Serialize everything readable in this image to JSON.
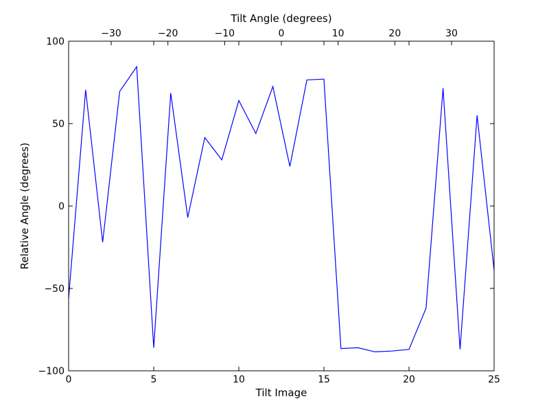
{
  "chart_data": {
    "type": "line",
    "xlabel": "Tilt Image",
    "ylabel": "Relative Angle (degrees)",
    "top_xlabel": "Tilt Angle (degrees)",
    "xlim": [
      0,
      25
    ],
    "ylim": [
      -100,
      100
    ],
    "top_xlim": [
      -37.5,
      37.5
    ],
    "x_ticks": [
      0,
      5,
      10,
      15,
      20,
      25
    ],
    "x_tick_labels": [
      "0",
      "5",
      "10",
      "15",
      "20",
      "25"
    ],
    "y_ticks": [
      -100,
      -50,
      0,
      50,
      100
    ],
    "y_tick_labels": [
      "−100",
      "−50",
      "0",
      "50",
      "100"
    ],
    "top_x_ticks": [
      -30,
      -20,
      -10,
      0,
      10,
      20,
      30
    ],
    "top_x_tick_labels": [
      "−30",
      "−20",
      "−10",
      "0",
      "10",
      "20",
      "30"
    ],
    "grid": false,
    "series": [
      {
        "color": "#0000ff",
        "x": [
          0,
          1,
          2,
          3,
          4,
          5,
          6,
          7,
          8,
          9,
          10,
          11,
          12,
          13,
          14,
          15,
          16,
          17,
          18,
          19,
          20,
          21,
          22,
          23,
          24,
          25
        ],
        "y": [
          -56,
          70.5,
          -22,
          69.5,
          84.5,
          -86,
          68.5,
          -7,
          41.5,
          28,
          64,
          44,
          72.5,
          24,
          76.5,
          77,
          -86.5,
          -86,
          -88.5,
          -88,
          -87,
          -62,
          71.5,
          -87,
          55,
          -39
        ]
      }
    ]
  }
}
